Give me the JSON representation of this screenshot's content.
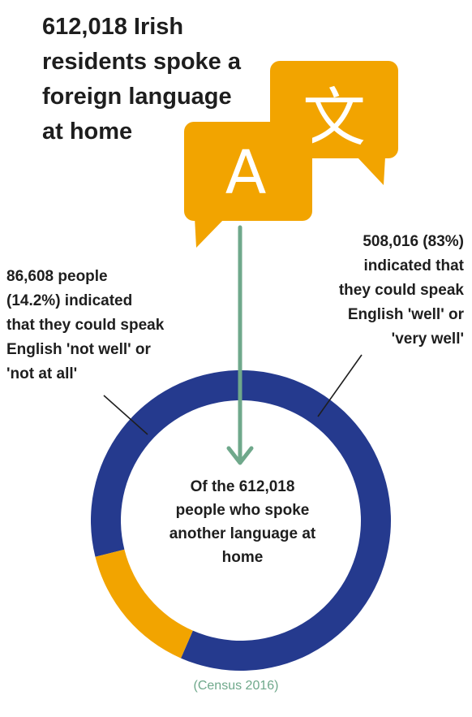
{
  "headline": "612,018 Irish\nresidents spoke a\nforeign language\nat home",
  "icons": {
    "front": "speech-bubble-letter-a-icon",
    "back": "speech-bubble-chinese-character-icon",
    "front_char": "A",
    "back_char": "文"
  },
  "center_label": "Of the 612,018\npeople who spoke\nanother language at\nhome",
  "source": "(Census 2016)",
  "colors": {
    "blue": "#253a8e",
    "orange": "#f2a400",
    "arrow": "#6fa88b"
  },
  "chart_data": {
    "type": "pie",
    "donut": true,
    "series": [
      {
        "label": "508,016 (83%)\nindicated that\nthey could speak\nEnglish 'well' or\n'very well'",
        "value": 508016,
        "color": "#253a8e"
      },
      {
        "label": "86,608 people\n(14.2%) indicated\nthat they could speak\nEnglish 'not well' or\n'not at all'",
        "value": 86608,
        "color": "#f2a400"
      }
    ]
  }
}
